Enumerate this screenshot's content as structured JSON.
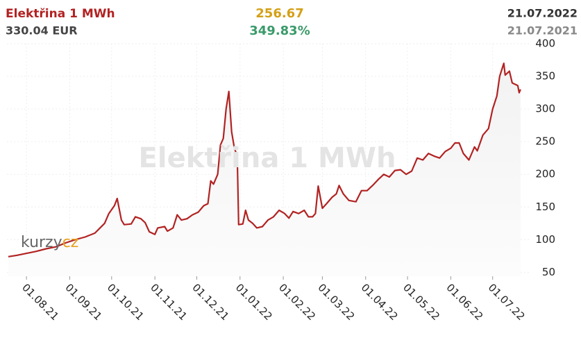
{
  "header": {
    "title": "Elektřina 1 MWh",
    "price": "330.04 EUR",
    "change": "256.67",
    "percent": "349.83%",
    "date": "21.07.2022",
    "date_prev": "21.07.2021"
  },
  "logo": {
    "a": "kurzy",
    "b": "cz"
  },
  "chart_data": {
    "type": "line",
    "watermark": "Elektřina 1 MWh",
    "color": "#b22222",
    "grid": true,
    "x": [
      "2021-07-19",
      "2021-07-25",
      "2021-08-01",
      "2021-08-08",
      "2021-08-15",
      "2021-08-22",
      "2021-08-29",
      "2021-09-05",
      "2021-09-12",
      "2021-09-19",
      "2021-09-26",
      "2021-09-29",
      "2021-10-03",
      "2021-10-05",
      "2021-10-08",
      "2021-10-10",
      "2021-10-15",
      "2021-10-18",
      "2021-10-22",
      "2021-10-25",
      "2021-10-28",
      "2021-11-01",
      "2021-11-03",
      "2021-11-08",
      "2021-11-10",
      "2021-11-14",
      "2021-11-17",
      "2021-11-20",
      "2021-11-24",
      "2021-11-28",
      "2021-12-02",
      "2021-12-06",
      "2021-12-09",
      "2021-12-11",
      "2021-12-13",
      "2021-12-16",
      "2021-12-18",
      "2021-12-20",
      "2021-12-22",
      "2021-12-24",
      "2021-12-26",
      "2021-12-28",
      "2021-12-30",
      "2021-12-31",
      "2022-01-03",
      "2022-01-05",
      "2022-01-07",
      "2022-01-10",
      "2022-01-13",
      "2022-01-17",
      "2022-01-21",
      "2022-01-25",
      "2022-01-29",
      "2022-02-02",
      "2022-02-05",
      "2022-02-08",
      "2022-02-12",
      "2022-02-16",
      "2022-02-19",
      "2022-02-22",
      "2022-02-24",
      "2022-02-26",
      "2022-03-01",
      "2022-03-04",
      "2022-03-08",
      "2022-03-11",
      "2022-03-13",
      "2022-03-16",
      "2022-03-20",
      "2022-03-25",
      "2022-03-29",
      "2022-04-02",
      "2022-04-06",
      "2022-04-10",
      "2022-04-14",
      "2022-04-18",
      "2022-04-22",
      "2022-04-26",
      "2022-04-30",
      "2022-05-04",
      "2022-05-08",
      "2022-05-12",
      "2022-05-16",
      "2022-05-20",
      "2022-05-24",
      "2022-05-28",
      "2022-06-01",
      "2022-06-04",
      "2022-06-07",
      "2022-06-10",
      "2022-06-14",
      "2022-06-18",
      "2022-06-20",
      "2022-06-24",
      "2022-06-28",
      "2022-07-01",
      "2022-07-04",
      "2022-07-06",
      "2022-07-09",
      "2022-07-10",
      "2022-07-13",
      "2022-07-15",
      "2022-07-19",
      "2022-07-20",
      "2022-07-21"
    ],
    "values": [
      74,
      76,
      79,
      82,
      86,
      89,
      95,
      100,
      104,
      110,
      125,
      140,
      152,
      163,
      130,
      123,
      124,
      135,
      132,
      126,
      112,
      108,
      118,
      120,
      113,
      118,
      138,
      130,
      132,
      138,
      142,
      152,
      155,
      190,
      185,
      200,
      245,
      255,
      300,
      327,
      265,
      240,
      228,
      123,
      124,
      145,
      130,
      125,
      118,
      120,
      130,
      135,
      145,
      140,
      133,
      143,
      140,
      145,
      135,
      135,
      140,
      182,
      148,
      155,
      165,
      170,
      183,
      170,
      160,
      158,
      175,
      175,
      183,
      192,
      200,
      196,
      206,
      207,
      200,
      205,
      225,
      222,
      232,
      228,
      225,
      235,
      240,
      248,
      248,
      232,
      222,
      242,
      236,
      260,
      270,
      300,
      320,
      350,
      370,
      352,
      358,
      340,
      336,
      325,
      330.04
    ],
    "xlim": [
      "2021-07-18",
      "2022-07-27"
    ],
    "xticks": [
      {
        "value": "2021-08-01",
        "label": "01.08.21"
      },
      {
        "value": "2021-09-01",
        "label": "01.09.21"
      },
      {
        "value": "2021-10-01",
        "label": "01.10.21"
      },
      {
        "value": "2021-11-01",
        "label": "01.11.21"
      },
      {
        "value": "2021-12-01",
        "label": "01.12.21"
      },
      {
        "value": "2022-01-01",
        "label": "01.01.22"
      },
      {
        "value": "2022-02-01",
        "label": "01.02.22"
      },
      {
        "value": "2022-03-01",
        "label": "01.03.22"
      },
      {
        "value": "2022-04-01",
        "label": "01.04.22"
      },
      {
        "value": "2022-05-01",
        "label": "01.05.22"
      },
      {
        "value": "2022-06-01",
        "label": "01.06.22"
      },
      {
        "value": "2022-07-01",
        "label": "01.07.22"
      }
    ],
    "ylim": [
      44,
      400
    ],
    "yticks": [
      50,
      100,
      150,
      200,
      250,
      300,
      350,
      400
    ]
  }
}
